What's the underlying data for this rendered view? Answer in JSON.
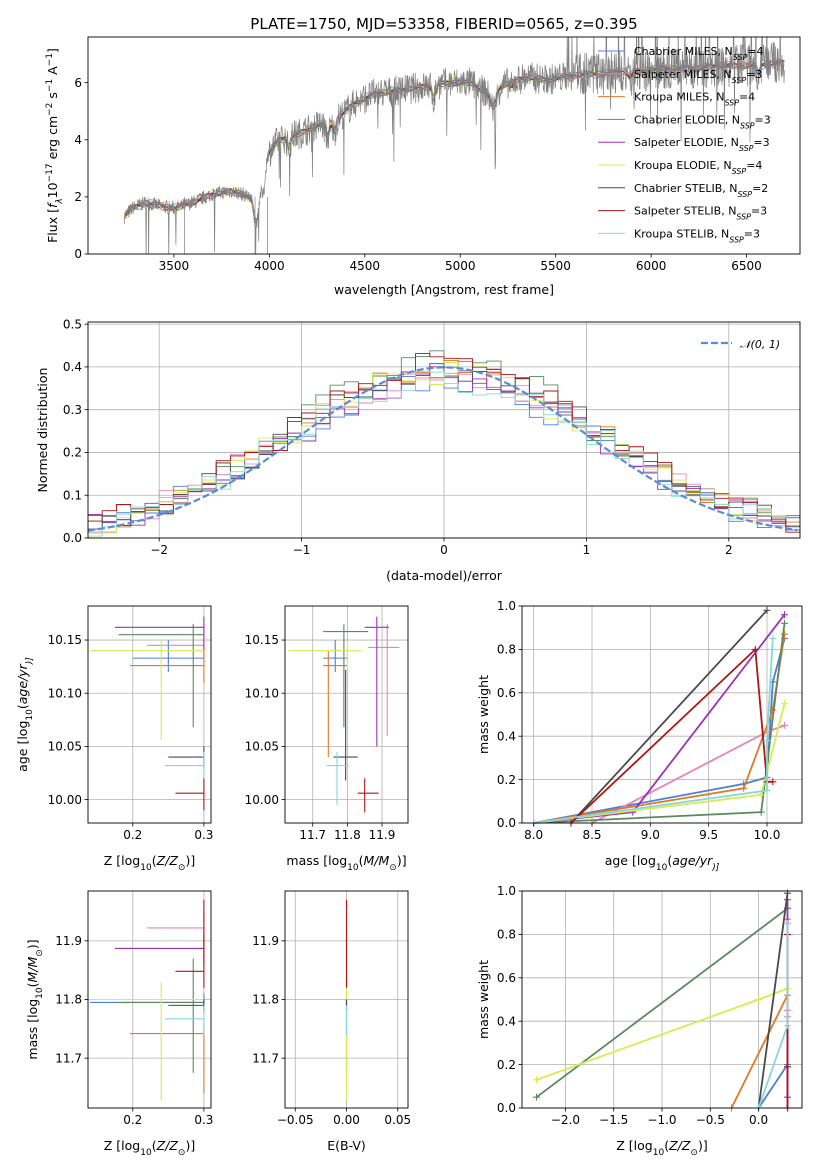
{
  "figure": {
    "title": "PLATE=1750, MJD=53358, FIBERID=0565, z=0.395"
  },
  "models": [
    {
      "name": "Chabrier MILES, N",
      "sub": "SSP",
      "suffix": "=4",
      "color": "#4d7fd6"
    },
    {
      "name": "Salpeter MILES, N",
      "sub": "SSP",
      "suffix": "=3",
      "color": "#e683c0"
    },
    {
      "name": "Kroupa MILES, N",
      "sub": "SSP",
      "suffix": "=4",
      "color": "#e07a27"
    },
    {
      "name": "Chabrier ELODIE, N",
      "sub": "SSP",
      "suffix": "=3",
      "color": "#5a8a5e"
    },
    {
      "name": "Salpeter ELODIE, N",
      "sub": "SSP",
      "suffix": "=3",
      "color": "#9b32b6"
    },
    {
      "name": "Kroupa ELODIE, N",
      "sub": "SSP",
      "suffix": "=4",
      "color": "#d6ec4f"
    },
    {
      "name": "Chabrier STELIB, N",
      "sub": "SSP",
      "suffix": "=2",
      "color": "#4a4a4a"
    },
    {
      "name": "Salpeter STELIB, N",
      "sub": "SSP",
      "suffix": "=3",
      "color": "#b01515"
    },
    {
      "name": "Kroupa STELIB, N",
      "sub": "SSP",
      "suffix": "=3",
      "color": "#86d6dc"
    }
  ],
  "chart_data": [
    {
      "id": "spectrum",
      "type": "line",
      "xlabel": "wavelength [Angstrom, rest frame]",
      "ylabel_parts": [
        "Flux [",
        "f",
        "λ",
        "10",
        "−17",
        " erg cm",
        "−2",
        " s",
        "−1",
        " A",
        "−1",
        "]"
      ],
      "xlim": [
        3050,
        6780
      ],
      "ylim": [
        0,
        7.6
      ],
      "xticks": [
        3500,
        4000,
        4500,
        5000,
        5500,
        6000,
        6500
      ],
      "yticks": [
        0,
        2,
        4,
        6
      ],
      "data_color": "#808080",
      "continuum": {
        "x": [
          3240,
          3280,
          3350,
          3420,
          3500,
          3600,
          3700,
          3800,
          3860,
          3920,
          3980,
          4050,
          4150,
          4250,
          4350,
          4450,
          4550,
          4650,
          4750,
          4850,
          4950,
          5050,
          5150,
          5250,
          5350,
          5450,
          5550,
          5650,
          5750,
          5850,
          5950,
          6050,
          6150,
          6250,
          6350,
          6450,
          6550,
          6650,
          6700
        ],
        "y": [
          1.3,
          1.6,
          1.8,
          1.7,
          1.6,
          1.8,
          2.1,
          2.2,
          2.1,
          1.9,
          3.4,
          4.0,
          4.2,
          4.5,
          4.7,
          5.3,
          5.6,
          5.7,
          5.8,
          5.9,
          6.0,
          6.0,
          5.6,
          6.0,
          6.2,
          6.1,
          6.2,
          6.3,
          6.3,
          6.4,
          6.4,
          6.5,
          6.5,
          6.5,
          6.6,
          6.6,
          6.6,
          6.7,
          6.7
        ]
      }
    },
    {
      "id": "residuals",
      "type": "bar",
      "xlabel": "(data-model)/error",
      "ylabel": "Normed distribution",
      "xlim": [
        -2.5,
        2.5
      ],
      "ylim": [
        0,
        0.505
      ],
      "xticks": [
        -2,
        -1,
        0,
        1,
        2
      ],
      "yticks": [
        0.0,
        0.1,
        0.2,
        0.3,
        0.4,
        0.5
      ],
      "bin_width": 0.1,
      "gaussian_label": "𝒩(0, 1)",
      "gaussian_color": "#5b8bd8"
    },
    {
      "id": "age_vs_Z",
      "type": "scatter",
      "xlabel_parts": [
        "Z [log",
        "10",
        "(",
        "Z/Z",
        "⊙",
        ")]"
      ],
      "ylabel_parts": [
        "age  [log",
        "10",
        "(",
        "age/yr",
        ")]"
      ],
      "xlim": [
        0.137,
        0.31
      ],
      "ylim": [
        9.978,
        10.182
      ],
      "xticks": [
        0.2,
        0.3
      ],
      "yticks": [
        10.0,
        10.05,
        10.1,
        10.15
      ],
      "points": [
        {
          "m": 0,
          "x": 0.25,
          "y": 10.133,
          "ex": [
            0.2,
            0.3
          ],
          "ey": [
            10.12,
            10.15
          ]
        },
        {
          "m": 1,
          "x": 0.3,
          "y": 10.145,
          "ex": [
            0.22,
            0.3
          ],
          "ey": [
            10.13,
            10.165
          ]
        },
        {
          "m": 2,
          "x": 0.3,
          "y": 10.126,
          "ex": [
            0.196,
            0.3
          ],
          "ey": [
            10.11,
            10.14
          ]
        },
        {
          "m": 3,
          "x": 0.285,
          "y": 10.155,
          "ex": [
            0.18,
            0.3
          ],
          "ey": [
            10.068,
            10.165
          ]
        },
        {
          "m": 4,
          "x": 0.3,
          "y": 10.162,
          "ex": [
            0.175,
            0.3
          ],
          "ey": [
            10.14,
            10.172
          ]
        },
        {
          "m": 5,
          "x": 0.24,
          "y": 10.14,
          "ex": [
            0.14,
            0.3
          ],
          "ey": [
            10.056,
            10.15
          ]
        },
        {
          "m": 6,
          "x": 0.3,
          "y": 10.04,
          "ex": [
            0.25,
            0.3
          ],
          "ey": [
            10.03,
            10.05
          ]
        },
        {
          "m": 7,
          "x": 0.3,
          "y": 10.006,
          "ex": [
            0.26,
            0.3
          ],
          "ey": [
            9.99,
            10.02
          ]
        },
        {
          "m": 8,
          "x": 0.3,
          "y": 10.032,
          "ex": [
            0.245,
            0.3
          ],
          "ey": [
            10.02,
            10.045
          ]
        }
      ]
    },
    {
      "id": "age_vs_mass",
      "type": "scatter",
      "xlabel_parts": [
        "mass [log",
        "10",
        "(",
        "M/M",
        "⊙",
        ")]"
      ],
      "ylabel_parts": [],
      "xlim": [
        11.62,
        11.975
      ],
      "ylim": [
        9.978,
        10.182
      ],
      "xticks": [
        11.7,
        11.8,
        11.9
      ],
      "yticks": [
        10.0,
        10.05,
        10.1,
        10.15
      ],
      "points": [
        {
          "m": 0,
          "x": 11.765,
          "y": 10.133,
          "ex": [
            11.73,
            11.8
          ],
          "ey": [
            10.12,
            10.15
          ]
        },
        {
          "m": 1,
          "x": 11.915,
          "y": 10.143,
          "ex": [
            11.86,
            11.95
          ],
          "ey": [
            10.06,
            10.165
          ]
        },
        {
          "m": 2,
          "x": 11.745,
          "y": 10.126,
          "ex": [
            11.73,
            11.8
          ],
          "ey": [
            10.04,
            10.14
          ]
        },
        {
          "m": 3,
          "x": 11.79,
          "y": 10.158,
          "ex": [
            11.73,
            11.86
          ],
          "ey": [
            10.068,
            10.165
          ]
        },
        {
          "m": 4,
          "x": 11.885,
          "y": 10.162,
          "ex": [
            11.85,
            11.92
          ],
          "ey": [
            10.05,
            10.172
          ]
        },
        {
          "m": 5,
          "x": 11.8,
          "y": 10.14,
          "ex": [
            11.63,
            11.84
          ],
          "ey": [
            10.12,
            10.15
          ]
        },
        {
          "m": 6,
          "x": 11.795,
          "y": 10.04,
          "ex": [
            11.76,
            11.83
          ],
          "ey": [
            10.018,
            10.122
          ]
        },
        {
          "m": 7,
          "x": 11.85,
          "y": 10.006,
          "ex": [
            11.83,
            11.89
          ],
          "ey": [
            9.988,
            10.02
          ]
        },
        {
          "m": 8,
          "x": 11.77,
          "y": 10.032,
          "ex": [
            11.74,
            11.8
          ],
          "ey": [
            9.995,
            10.045
          ]
        }
      ]
    },
    {
      "id": "massweight_vs_age",
      "type": "line",
      "xlabel_parts": [
        "age  [log",
        "10",
        "(",
        "age/yr",
        ")]"
      ],
      "ylabel": "mass weight",
      "xlim": [
        7.9,
        10.3
      ],
      "ylim": [
        0,
        1
      ],
      "xticks": [
        8.0,
        8.5,
        9.0,
        9.5,
        10.0
      ],
      "yticks": [
        0.0,
        0.2,
        0.4,
        0.6,
        0.8,
        1.0
      ],
      "series": [
        {
          "m": 0,
          "x": [
            8.0,
            9.8,
            10.0,
            10.05,
            10.15
          ],
          "y": [
            0.0,
            0.18,
            0.21,
            0.65,
            0.85
          ]
        },
        {
          "m": 1,
          "x": [
            8.5,
            10.0,
            10.15
          ],
          "y": [
            0.0,
            0.42,
            0.45
          ]
        },
        {
          "m": 2,
          "x": [
            8.0,
            9.8,
            10.05,
            10.15
          ],
          "y": [
            0.0,
            0.16,
            0.52,
            0.87
          ]
        },
        {
          "m": 3,
          "x": [
            8.0,
            9.95,
            10.15
          ],
          "y": [
            0.0,
            0.05,
            0.92
          ]
        },
        {
          "m": 4,
          "x": [
            8.0,
            8.85,
            10.15
          ],
          "y": [
            0.0,
            0.05,
            0.96
          ]
        },
        {
          "m": 5,
          "x": [
            8.0,
            9.95,
            10.15
          ],
          "y": [
            0.0,
            0.13,
            0.55
          ]
        },
        {
          "m": 6,
          "x": [
            8.32,
            10.0
          ],
          "y": [
            0.0,
            0.98
          ]
        },
        {
          "m": 7,
          "x": [
            8.32,
            9.9,
            10.0,
            10.05
          ],
          "y": [
            0.0,
            0.8,
            0.19,
            0.19
          ]
        },
        {
          "m": 8,
          "x": [
            8.0,
            10.0,
            10.0,
            10.05
          ],
          "y": [
            0.0,
            0.15,
            0.38,
            0.85
          ]
        }
      ]
    },
    {
      "id": "mass_vs_Z",
      "type": "scatter",
      "xlabel_parts": [
        "Z [log",
        "10",
        "(",
        "Z/Z",
        "⊙",
        ")]"
      ],
      "ylabel_parts": [
        "mass [log",
        "10",
        "(",
        "M/M",
        "⊙",
        ")]"
      ],
      "xlim": [
        0.137,
        0.31
      ],
      "ylim": [
        11.615,
        11.985
      ],
      "xticks": [
        0.2,
        0.3
      ],
      "yticks": [
        11.7,
        11.8,
        11.9
      ],
      "points": [
        {
          "m": 0,
          "x": 0.3,
          "y": 11.795,
          "ex": [
            0.14,
            0.3
          ],
          "ey": [
            11.78,
            11.81
          ]
        },
        {
          "m": 1,
          "x": 0.3,
          "y": 11.922,
          "ex": [
            0.22,
            0.3
          ],
          "ey": [
            11.89,
            11.95
          ]
        },
        {
          "m": 2,
          "x": 0.3,
          "y": 11.742,
          "ex": [
            0.196,
            0.3
          ],
          "ey": [
            11.64,
            11.76
          ]
        },
        {
          "m": 3,
          "x": 0.285,
          "y": 11.795,
          "ex": [
            0.18,
            0.3
          ],
          "ey": [
            11.675,
            11.87
          ]
        },
        {
          "m": 4,
          "x": 0.3,
          "y": 11.887,
          "ex": [
            0.175,
            0.3
          ],
          "ey": [
            11.86,
            11.91
          ]
        },
        {
          "m": 5,
          "x": 0.24,
          "y": 11.8,
          "ex": [
            0.14,
            0.3
          ],
          "ey": [
            11.628,
            11.83
          ]
        },
        {
          "m": 6,
          "x": 0.3,
          "y": 11.79,
          "ex": [
            0.25,
            0.3
          ],
          "ey": [
            11.78,
            11.8
          ]
        },
        {
          "m": 7,
          "x": 0.3,
          "y": 11.848,
          "ex": [
            0.26,
            0.3
          ],
          "ey": [
            11.82,
            11.97
          ]
        },
        {
          "m": 8,
          "x": 0.3,
          "y": 11.767,
          "ex": [
            0.245,
            0.3
          ],
          "ey": [
            11.74,
            11.79
          ]
        }
      ]
    },
    {
      "id": "mass_vs_EBV",
      "type": "scatter",
      "xlabel_parts": [
        "E(B-V)"
      ],
      "ylabel_parts": [],
      "xlim": [
        -0.06,
        0.06
      ],
      "ylim": [
        11.615,
        11.985
      ],
      "xticks": [
        -0.05,
        0.0,
        0.05
      ],
      "ytick_labels_on": true,
      "yticks": [
        11.7,
        11.8,
        11.9
      ],
      "points": [
        {
          "m": 0,
          "x": 0.0,
          "y": 11.795,
          "ex": [
            0,
            0
          ],
          "ey": [
            11.78,
            11.81
          ]
        },
        {
          "m": 1,
          "x": 0.0,
          "y": 11.922,
          "ex": [
            0,
            0
          ],
          "ey": [
            11.89,
            11.95
          ]
        },
        {
          "m": 2,
          "x": 0.0,
          "y": 11.742,
          "ex": [
            0,
            0
          ],
          "ey": [
            11.64,
            11.76
          ]
        },
        {
          "m": 3,
          "x": 0.0,
          "y": 11.795,
          "ex": [
            0,
            0
          ],
          "ey": [
            11.675,
            11.87
          ]
        },
        {
          "m": 4,
          "x": 0.0,
          "y": 11.887,
          "ex": [
            0,
            0
          ],
          "ey": [
            11.86,
            11.91
          ]
        },
        {
          "m": 5,
          "x": 0.0,
          "y": 11.8,
          "ex": [
            0,
            0
          ],
          "ey": [
            11.628,
            11.83
          ]
        },
        {
          "m": 6,
          "x": 0.0,
          "y": 11.79,
          "ex": [
            0,
            0
          ],
          "ey": [
            11.78,
            11.8
          ]
        },
        {
          "m": 7,
          "x": 0.0,
          "y": 11.848,
          "ex": [
            0,
            0
          ],
          "ey": [
            11.82,
            11.97
          ]
        },
        {
          "m": 8,
          "x": 0.0,
          "y": 11.767,
          "ex": [
            0,
            0
          ],
          "ey": [
            11.74,
            11.79
          ]
        }
      ]
    },
    {
      "id": "massweight_vs_Z",
      "type": "line",
      "xlabel_parts": [
        "Z [log",
        "10",
        "(",
        "Z/Z",
        "⊙",
        ")]"
      ],
      "ylabel": "mass weight",
      "xlim": [
        -2.45,
        0.45
      ],
      "ylim": [
        0,
        1
      ],
      "xticks": [
        -2.0,
        -1.5,
        -1.0,
        -0.5,
        0.0
      ],
      "yticks": [
        0.0,
        0.2,
        0.4,
        0.6,
        0.8,
        1.0
      ],
      "series": [
        {
          "m": 0,
          "x": [
            0.0,
            0.3,
            0.3
          ],
          "y": [
            0.0,
            0.2,
            0.85
          ]
        },
        {
          "m": 1,
          "x": [
            0.3,
            0.3,
            0.3
          ],
          "y": [
            0.0,
            0.42,
            0.45
          ]
        },
        {
          "m": 2,
          "x": [
            -0.28,
            0.3,
            0.3
          ],
          "y": [
            0.0,
            0.52,
            0.87
          ]
        },
        {
          "m": 3,
          "x": [
            -2.3,
            0.3,
            0.3
          ],
          "y": [
            0.05,
            0.92,
            0.92
          ]
        },
        {
          "m": 4,
          "x": [
            0.3,
            0.3,
            0.3
          ],
          "y": [
            0.0,
            0.05,
            0.96
          ]
        },
        {
          "m": 5,
          "x": [
            -2.3,
            0.0,
            0.3
          ],
          "y": [
            0.13,
            0.5,
            0.55
          ]
        },
        {
          "m": 6,
          "x": [
            0.0,
            0.3
          ],
          "y": [
            0.0,
            0.99
          ]
        },
        {
          "m": 7,
          "x": [
            0.3,
            0.3,
            0.3
          ],
          "y": [
            0.0,
            0.19,
            0.8
          ]
        },
        {
          "m": 8,
          "x": [
            0.0,
            0.3,
            0.3
          ],
          "y": [
            0.0,
            0.38,
            0.85
          ]
        }
      ]
    }
  ]
}
